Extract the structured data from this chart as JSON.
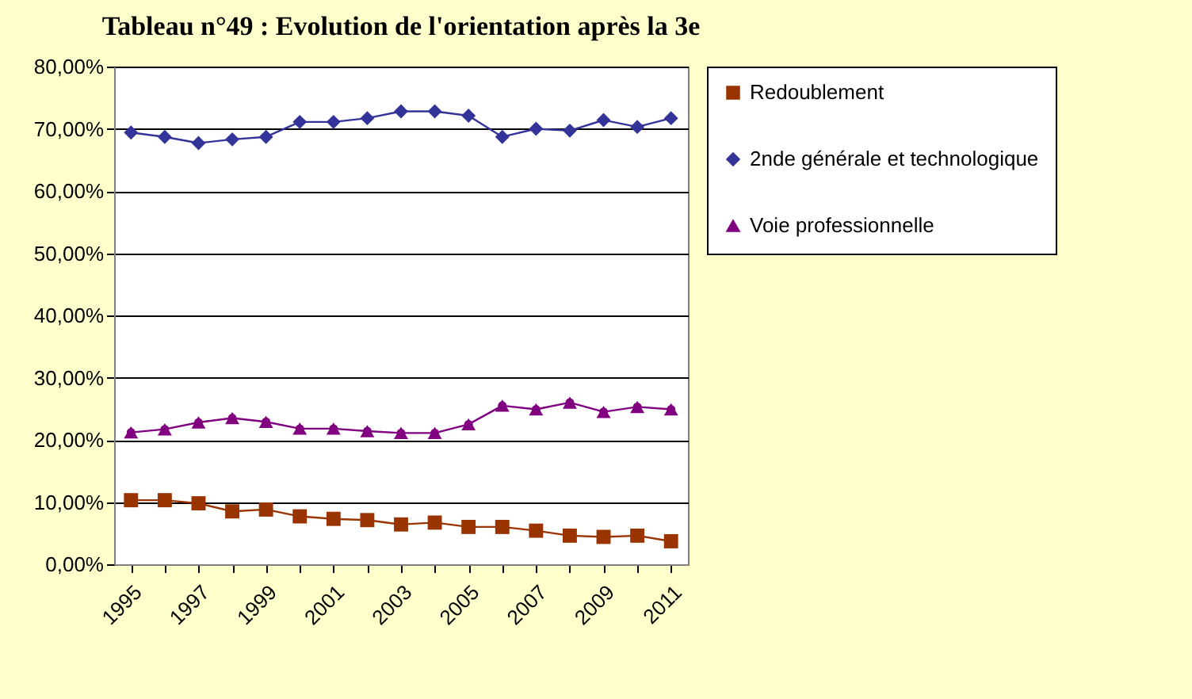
{
  "chart_data": {
    "type": "line",
    "title": "Tableau n°49 : Evolution de l'orientation après la 3e",
    "categories": [
      "1995",
      null,
      "1997",
      null,
      "1999",
      null,
      "2001",
      null,
      "2003",
      null,
      "2005",
      null,
      "2007",
      null,
      "2009",
      null,
      "2011"
    ],
    "series": [
      {
        "name": "Redoublement",
        "color": "#993300",
        "marker": "square",
        "values": [
          10.3,
          10.3,
          9.8,
          8.5,
          8.8,
          7.7,
          7.3,
          7.1,
          6.4,
          6.7,
          6.0,
          6.0,
          5.4,
          4.6,
          4.4,
          4.6,
          3.7
        ]
      },
      {
        "name": "2nde générale et technologique",
        "color": "#333399",
        "marker": "diamond",
        "values": [
          69.4,
          68.7,
          67.7,
          68.3,
          68.7,
          71.1,
          71.1,
          71.7,
          72.8,
          72.8,
          72.1,
          68.7,
          70.0,
          69.7,
          71.4,
          70.3,
          71.7
        ]
      },
      {
        "name": "Voie professionnelle",
        "color": "#800080",
        "marker": "triangle",
        "values": [
          21.2,
          21.7,
          22.8,
          23.5,
          22.9,
          21.8,
          21.8,
          21.4,
          21.1,
          21.1,
          22.5,
          25.5,
          24.9,
          26.0,
          24.5,
          25.3,
          24.9
        ]
      }
    ],
    "ylim": [
      0,
      80
    ],
    "yticks": [
      {
        "value": 0,
        "label": "0,00%"
      },
      {
        "value": 10,
        "label": "10,00%"
      },
      {
        "value": 20,
        "label": "20,00%"
      },
      {
        "value": 30,
        "label": "30,00%"
      },
      {
        "value": 40,
        "label": "40,00%"
      },
      {
        "value": 50,
        "label": "50,00%"
      },
      {
        "value": 60,
        "label": "60,00%"
      },
      {
        "value": 70,
        "label": "70,00%"
      },
      {
        "value": 80,
        "label": "80,00%"
      }
    ],
    "grid": "y",
    "legend": "right"
  }
}
